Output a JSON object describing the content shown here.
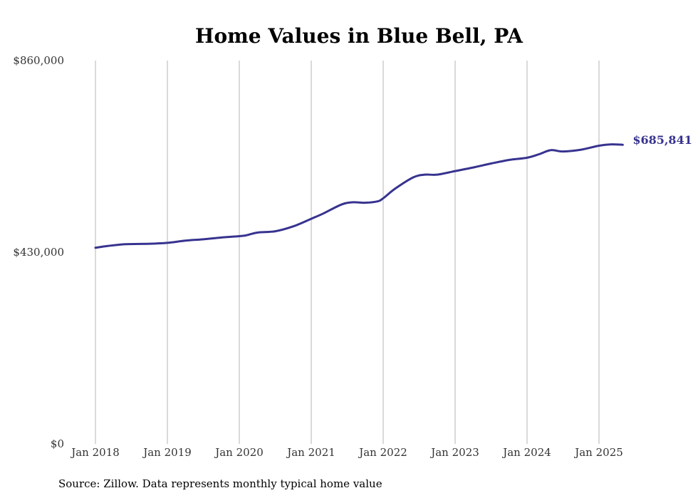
{
  "chart_data": {
    "type": "line",
    "title": "Home Values in Blue Bell, PA",
    "source": "Source: Zillow. Data represents monthly typical home value",
    "xlabel": "",
    "ylabel": "",
    "ylim": [
      0,
      860000
    ],
    "yticks": [
      {
        "value": 0,
        "label": "$0"
      },
      {
        "value": 430000,
        "label": "$430,000"
      },
      {
        "value": 860000,
        "label": "$860,000"
      }
    ],
    "xticks": [
      {
        "value": 2018.0,
        "label": "Jan 2018"
      },
      {
        "value": 2019.0,
        "label": "Jan 2019"
      },
      {
        "value": 2020.0,
        "label": "Jan 2020"
      },
      {
        "value": 2021.0,
        "label": "Jan 2021"
      },
      {
        "value": 2022.0,
        "label": "Jan 2022"
      },
      {
        "value": 2023.0,
        "label": "Jan 2023"
      },
      {
        "value": 2024.0,
        "label": "Jan 2024"
      },
      {
        "value": 2025.0,
        "label": "Jan 2025"
      }
    ],
    "grid": {
      "vertical": true,
      "horizontal": false
    },
    "series": [
      {
        "color": "#37338f",
        "end_label": "$685,841",
        "points": [
          [
            2018.0,
            440000
          ],
          [
            2018.17,
            444000
          ],
          [
            2018.42,
            448000
          ],
          [
            2018.75,
            449000
          ],
          [
            2019.0,
            451000
          ],
          [
            2019.25,
            456000
          ],
          [
            2019.5,
            459000
          ],
          [
            2019.75,
            463000
          ],
          [
            2020.0,
            466000
          ],
          [
            2020.1,
            468000
          ],
          [
            2020.25,
            474000
          ],
          [
            2020.5,
            477000
          ],
          [
            2020.75,
            488000
          ],
          [
            2021.0,
            505000
          ],
          [
            2021.17,
            517000
          ],
          [
            2021.42,
            537000
          ],
          [
            2021.58,
            542000
          ],
          [
            2021.75,
            541000
          ],
          [
            2021.92,
            544000
          ],
          [
            2022.0,
            551000
          ],
          [
            2022.17,
            573000
          ],
          [
            2022.42,
            598000
          ],
          [
            2022.58,
            604000
          ],
          [
            2022.75,
            604000
          ],
          [
            2023.0,
            612000
          ],
          [
            2023.25,
            620000
          ],
          [
            2023.5,
            629000
          ],
          [
            2023.75,
            637000
          ],
          [
            2024.0,
            642000
          ],
          [
            2024.17,
            650000
          ],
          [
            2024.33,
            659000
          ],
          [
            2024.5,
            656000
          ],
          [
            2024.75,
            660000
          ],
          [
            2025.0,
            669000
          ],
          [
            2025.17,
            672000
          ],
          [
            2025.33,
            671000
          ]
        ]
      }
    ]
  }
}
